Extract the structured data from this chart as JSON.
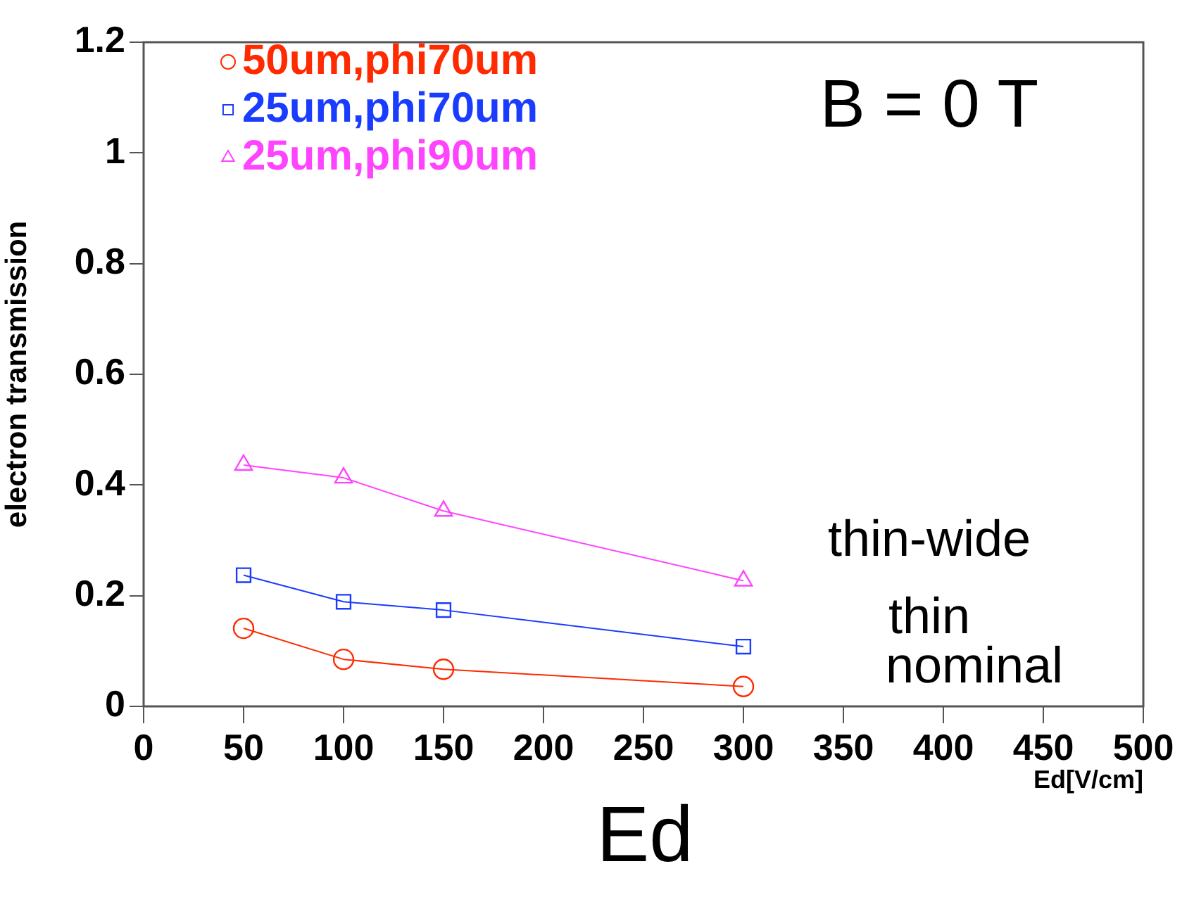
{
  "chart_data": {
    "type": "line",
    "xlabel": "Ed[V/cm]",
    "ylabel": "electron transmission",
    "x": [
      50,
      100,
      150,
      300
    ],
    "series": [
      {
        "name": "50um,phi70um",
        "color": "#ff2a00",
        "marker": "circle",
        "values": [
          0.141,
          0.085,
          0.067,
          0.036
        ]
      },
      {
        "name": "25um,phi70um",
        "color": "#1a3cff",
        "marker": "square",
        "values": [
          0.237,
          0.189,
          0.174,
          0.108
        ]
      },
      {
        "name": "25um,phi90um",
        "color": "#ff44ff",
        "marker": "triangle",
        "values": [
          0.436,
          0.413,
          0.353,
          0.227
        ]
      }
    ],
    "xlim": [
      0,
      500
    ],
    "xticks": [
      0,
      50,
      100,
      150,
      200,
      250,
      300,
      350,
      400,
      450,
      500
    ],
    "ylim": [
      0,
      1.2
    ],
    "yticks": [
      0,
      0.2,
      0.4,
      0.6,
      0.8,
      1,
      1.2
    ],
    "grid": false,
    "legend": "top left",
    "annotations": [
      "B = 0 T",
      "thin-wide",
      "thin",
      "nominal",
      "Ed"
    ]
  }
}
